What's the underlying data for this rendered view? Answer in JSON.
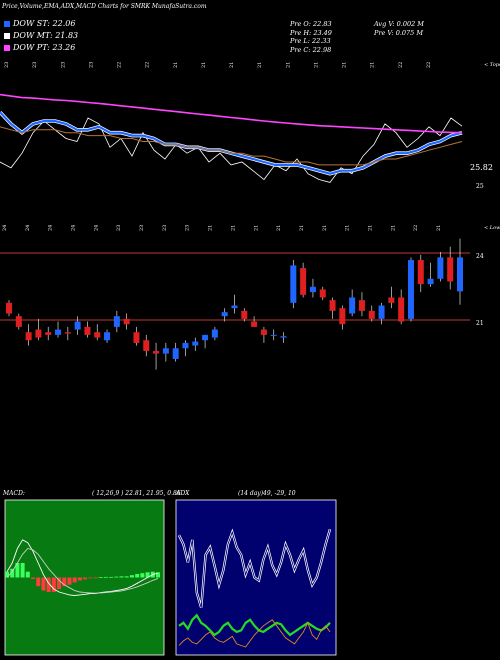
{
  "header": {
    "title": "Price,Volume,EMA,ADX,MACD Charts for SMRK MunafaSutra.com"
  },
  "legend": [
    {
      "label": "DOW ST: 22.06",
      "color": "#1e66ff"
    },
    {
      "label": "DOW MT: 21.83",
      "color": "#ffffff"
    },
    {
      "label": "DOW PT: 23.26",
      "color": "#ff44ff"
    }
  ],
  "prev_info": {
    "o": "Pre   O: 22.83",
    "h": "Pre   H: 23.49",
    "l": "Pre   L: 22.33",
    "c": "Pre   C: 22.98"
  },
  "vol_info": {
    "avg": "Avg V: 0.002  M",
    "pre": "Pre   V: 0.075  M"
  },
  "colors": {
    "ema_blue": "#1e66ff",
    "mt": "#ffffff",
    "pt": "#ff44ff",
    "level_line": "#c0392b",
    "bull": "#1e66ff",
    "bear": "#e02020"
  },
  "chart_data": [
    {
      "type": "line",
      "name": "price-ema-panel",
      "date_labels": [
        "23",
        "23",
        "23",
        "23",
        "22",
        "22",
        "21",
        "21",
        "21",
        "21",
        "21",
        "21",
        "21",
        "21",
        "22",
        "22"
      ],
      "right_label": "< Topo",
      "y_ticks": [
        {
          "value": 25,
          "label": "25"
        }
      ],
      "last_value_label": "25.82",
      "series": [
        {
          "values": [
            24.6,
            24.4,
            24.9,
            25.6,
            26.0,
            25.7,
            25.4,
            25.3,
            26.1,
            25.9,
            25.1,
            25.4,
            24.8,
            25.6,
            25.0,
            24.7,
            25.2,
            24.9,
            25.1,
            24.6,
            24.9,
            24.5,
            24.6,
            24.3,
            24.0,
            24.5,
            24.3,
            24.7,
            24.2,
            24.0,
            23.9,
            24.4,
            24.2,
            24.8,
            25.2,
            25.9,
            25.6,
            25.1,
            25.4,
            25.8,
            25.5,
            26.1,
            25.82
          ]
        },
        {
          "values": [
            26.3,
            25.9,
            25.6,
            25.9,
            26.0,
            26.0,
            25.9,
            25.7,
            25.7,
            25.8,
            25.6,
            25.6,
            25.5,
            25.5,
            25.4,
            25.2,
            25.2,
            25.1,
            25.1,
            25.0,
            25.0,
            24.9,
            24.8,
            24.7,
            24.6,
            24.5,
            24.5,
            24.5,
            24.4,
            24.3,
            24.2,
            24.3,
            24.3,
            24.4,
            24.6,
            24.8,
            24.9,
            24.9,
            25.0,
            25.2,
            25.3,
            25.5,
            25.6
          ]
        },
        {
          "values": [
            25.8,
            25.7,
            25.6,
            25.7,
            25.7,
            25.7,
            25.6,
            25.6,
            25.5,
            25.5,
            25.5,
            25.4,
            25.4,
            25.3,
            25.3,
            25.2,
            25.2,
            25.1,
            25.1,
            25.0,
            25.0,
            24.9,
            24.9,
            24.8,
            24.8,
            24.7,
            24.6,
            24.6,
            24.6,
            24.5,
            24.5,
            24.5,
            24.5,
            24.5,
            24.6,
            24.7,
            24.7,
            24.8,
            24.9,
            25.0,
            25.1,
            25.2,
            25.3
          ]
        },
        {
          "values": [
            26.9,
            26.85,
            26.8,
            26.78,
            26.75,
            26.72,
            26.7,
            26.67,
            26.63,
            26.6,
            26.56,
            26.52,
            26.48,
            26.44,
            26.4,
            26.36,
            26.32,
            26.28,
            26.24,
            26.2,
            26.16,
            26.12,
            26.08,
            26.04,
            26.0,
            25.96,
            25.93,
            25.9,
            25.87,
            25.84,
            25.82,
            25.8,
            25.78,
            25.76,
            25.74,
            25.72,
            25.7,
            25.68,
            25.66,
            25.64,
            25.62,
            25.61,
            25.6
          ]
        }
      ]
    },
    {
      "type": "candlestick",
      "name": "candle-panel",
      "date_labels": [
        "24",
        "24",
        "24",
        "24",
        "24",
        "23",
        "23",
        "23",
        "23",
        "21",
        "21",
        "21",
        "21",
        "21",
        "21",
        "21",
        "21",
        "21",
        "22",
        "21"
      ],
      "right_label": "< Lowe",
      "y_ticks": [
        {
          "value": 24,
          "label": "24"
        },
        {
          "value": 21,
          "label": "21"
        }
      ],
      "candles": [
        {
          "o": 22.4,
          "h": 22.5,
          "l": 21.9,
          "c": 22.0
        },
        {
          "o": 21.9,
          "h": 22.0,
          "l": 21.4,
          "c": 21.5
        },
        {
          "o": 21.3,
          "h": 21.6,
          "l": 20.8,
          "c": 21.0
        },
        {
          "o": 21.4,
          "h": 21.8,
          "l": 21.0,
          "c": 21.1
        },
        {
          "o": 21.3,
          "h": 21.5,
          "l": 21.0,
          "c": 21.2
        },
        {
          "o": 21.2,
          "h": 21.7,
          "l": 21.1,
          "c": 21.4
        },
        {
          "o": 21.3,
          "h": 21.5,
          "l": 21.0,
          "c": 21.25
        },
        {
          "o": 21.4,
          "h": 21.9,
          "l": 21.2,
          "c": 21.7
        },
        {
          "o": 21.5,
          "h": 21.7,
          "l": 21.1,
          "c": 21.2
        },
        {
          "o": 21.3,
          "h": 21.6,
          "l": 21.0,
          "c": 21.1
        },
        {
          "o": 21.0,
          "h": 21.4,
          "l": 20.9,
          "c": 21.3
        },
        {
          "o": 21.5,
          "h": 22.1,
          "l": 21.3,
          "c": 21.9
        },
        {
          "o": 21.8,
          "h": 22.0,
          "l": 21.4,
          "c": 21.6
        },
        {
          "o": 21.3,
          "h": 21.5,
          "l": 20.8,
          "c": 20.9
        },
        {
          "o": 21.0,
          "h": 21.2,
          "l": 20.4,
          "c": 20.6
        },
        {
          "o": 20.6,
          "h": 20.9,
          "l": 19.9,
          "c": 20.5
        },
        {
          "o": 20.5,
          "h": 20.9,
          "l": 20.2,
          "c": 20.7
        },
        {
          "o": 20.3,
          "h": 20.9,
          "l": 20.2,
          "c": 20.7
        },
        {
          "o": 20.7,
          "h": 21.0,
          "l": 20.4,
          "c": 20.9
        },
        {
          "o": 20.8,
          "h": 21.1,
          "l": 20.6,
          "c": 20.95
        },
        {
          "o": 21.0,
          "h": 21.2,
          "l": 20.7,
          "c": 21.2
        },
        {
          "o": 21.1,
          "h": 21.5,
          "l": 21.0,
          "c": 21.4
        },
        {
          "o": 21.9,
          "h": 22.2,
          "l": 21.7,
          "c": 22.05
        },
        {
          "o": 22.2,
          "h": 22.7,
          "l": 22.0,
          "c": 22.3
        },
        {
          "o": 22.1,
          "h": 22.2,
          "l": 21.7,
          "c": 21.8
        },
        {
          "o": 21.7,
          "h": 21.9,
          "l": 21.5,
          "c": 21.5
        },
        {
          "o": 21.4,
          "h": 21.5,
          "l": 20.9,
          "c": 21.2
        },
        {
          "o": 21.2,
          "h": 21.4,
          "l": 21.0,
          "c": 21.2
        },
        {
          "o": 21.1,
          "h": 21.3,
          "l": 20.9,
          "c": 21.15
        },
        {
          "o": 22.4,
          "h": 24.0,
          "l": 22.2,
          "c": 23.8
        },
        {
          "o": 23.7,
          "h": 23.9,
          "l": 22.6,
          "c": 22.7
        },
        {
          "o": 22.8,
          "h": 23.3,
          "l": 22.6,
          "c": 23.0
        },
        {
          "o": 22.9,
          "h": 23.0,
          "l": 22.5,
          "c": 22.6
        },
        {
          "o": 22.5,
          "h": 22.6,
          "l": 21.8,
          "c": 22.1
        },
        {
          "o": 22.2,
          "h": 22.3,
          "l": 21.4,
          "c": 21.6
        },
        {
          "o": 22.0,
          "h": 22.9,
          "l": 21.9,
          "c": 22.6
        },
        {
          "o": 22.5,
          "h": 22.8,
          "l": 21.9,
          "c": 22.1
        },
        {
          "o": 22.1,
          "h": 22.3,
          "l": 21.7,
          "c": 21.8
        },
        {
          "o": 21.8,
          "h": 22.4,
          "l": 21.6,
          "c": 22.3
        },
        {
          "o": 22.6,
          "h": 23.0,
          "l": 22.2,
          "c": 22.4
        },
        {
          "o": 22.6,
          "h": 22.9,
          "l": 21.6,
          "c": 21.7
        },
        {
          "o": 21.8,
          "h": 24.1,
          "l": 21.7,
          "c": 24.0
        },
        {
          "o": 24.0,
          "h": 24.2,
          "l": 22.8,
          "c": 23.1
        },
        {
          "o": 23.1,
          "h": 23.9,
          "l": 23.0,
          "c": 23.3
        },
        {
          "o": 23.3,
          "h": 24.3,
          "l": 23.2,
          "c": 24.1
        },
        {
          "o": 24.1,
          "h": 24.5,
          "l": 22.9,
          "c": 23.2
        },
        {
          "o": 22.83,
          "h": 24.8,
          "l": 22.33,
          "c": 24.1
        }
      ]
    },
    {
      "type": "line",
      "name": "macd-panel",
      "label": "MACD:",
      "params": "( 12,26,9 ) 22.81, 21.95, 0.86",
      "series": [
        {
          "values": [
            0.2,
            0.5,
            1.0,
            1.3,
            1.2,
            0.9,
            0.5,
            0.1,
            -0.2,
            -0.4,
            -0.5,
            -0.55,
            -0.6,
            -0.62,
            -0.6,
            -0.58,
            -0.55,
            -0.55,
            -0.52,
            -0.5,
            -0.48,
            -0.45,
            -0.42,
            -0.38,
            -0.3,
            -0.2,
            -0.1,
            0.0,
            0.1,
            0.15
          ]
        },
        {
          "values": [
            0.0,
            0.2,
            0.5,
            0.8,
            1.0,
            0.95,
            0.8,
            0.55,
            0.3,
            0.1,
            -0.1,
            -0.25,
            -0.35,
            -0.45,
            -0.5,
            -0.52,
            -0.53,
            -0.54,
            -0.53,
            -0.52,
            -0.5,
            -0.48,
            -0.46,
            -0.42,
            -0.38,
            -0.32,
            -0.25,
            -0.18,
            -0.1,
            -0.03
          ]
        },
        {
          "values": [
            0.2,
            0.3,
            0.5,
            0.5,
            0.2,
            -0.05,
            -0.3,
            -0.45,
            -0.5,
            -0.5,
            -0.4,
            -0.3,
            -0.25,
            -0.17,
            -0.1,
            -0.06,
            -0.02,
            -0.01,
            0.01,
            0.02,
            0.02,
            0.03,
            0.04,
            0.04,
            0.08,
            0.12,
            0.15,
            0.18,
            0.2,
            0.18
          ]
        }
      ]
    },
    {
      "type": "line",
      "name": "adx-panel",
      "label": "ADX",
      "params": "(14 day)49, -29, 10",
      "series": [
        {
          "values": [
            78,
            72,
            60,
            75,
            40,
            30,
            65,
            70,
            58,
            45,
            55,
            72,
            80,
            70,
            65,
            52,
            60,
            50,
            48,
            62,
            70,
            58,
            52,
            60,
            72,
            65,
            55,
            62,
            68,
            55,
            45,
            50,
            60,
            72,
            82
          ]
        },
        {
          "values": [
            18,
            20,
            16,
            22,
            25,
            20,
            18,
            15,
            12,
            14,
            18,
            20,
            16,
            14,
            15,
            20,
            22,
            18,
            15,
            14,
            16,
            18,
            20,
            19,
            15,
            12,
            14,
            16,
            18,
            20,
            18,
            16,
            15,
            17,
            20
          ]
        },
        {
          "values": [
            5,
            8,
            10,
            7,
            6,
            9,
            12,
            14,
            10,
            8,
            7,
            9,
            11,
            6,
            5,
            4,
            8,
            12,
            15,
            18,
            20,
            22,
            18,
            14,
            10,
            8,
            6,
            10,
            14,
            20,
            12,
            9,
            15,
            18,
            14
          ]
        }
      ]
    }
  ]
}
